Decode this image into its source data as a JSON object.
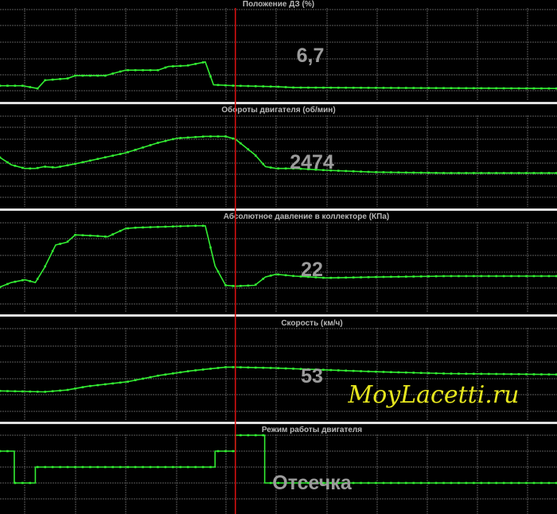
{
  "colors": {
    "background": "#000000",
    "line": "#33ee33",
    "cursor": "#dd1111",
    "grid": "#5a5a5a",
    "separator": "#e0e0e0",
    "value_text": "#9c9c9c",
    "watermark": "#e6e61e"
  },
  "watermark": "MoyLacetti.ru",
  "chart_data": [
    {
      "type": "line",
      "title": "Положение ДЗ  (%)",
      "current_value": "6,7",
      "x_unit": "sample",
      "cursor_sample": 31.3,
      "y_unit": "percent of plot height",
      "points": [
        [
          0,
          15
        ],
        [
          3,
          15
        ],
        [
          5,
          12
        ],
        [
          6,
          21
        ],
        [
          9,
          23
        ],
        [
          10,
          26
        ],
        [
          14,
          26
        ],
        [
          15.3,
          29
        ],
        [
          16.7,
          32
        ],
        [
          21,
          32
        ],
        [
          22.4,
          36
        ],
        [
          24.9,
          37
        ],
        [
          27.3,
          41
        ],
        [
          28.4,
          16
        ],
        [
          31.3,
          15
        ],
        [
          36.7,
          14
        ],
        [
          39.2,
          13
        ],
        [
          74,
          12
        ]
      ]
    },
    {
      "type": "line",
      "title": "Обороты двигателя  (об/мин)",
      "current_value": "2474",
      "x_unit": "sample",
      "cursor_sample": 31.3,
      "y_unit": "percent of plot height",
      "points": [
        [
          0,
          54
        ],
        [
          1.5,
          46
        ],
        [
          3.3,
          42
        ],
        [
          4.7,
          42
        ],
        [
          5.9,
          44
        ],
        [
          7.4,
          43
        ],
        [
          10,
          47
        ],
        [
          13.9,
          54
        ],
        [
          16.7,
          59
        ],
        [
          21,
          70
        ],
        [
          23.5,
          75
        ],
        [
          27.3,
          77
        ],
        [
          30,
          77
        ],
        [
          31.3,
          74
        ],
        [
          33.9,
          57
        ],
        [
          35.3,
          44
        ],
        [
          36.7,
          42
        ],
        [
          39.2,
          42
        ],
        [
          43.4,
          40
        ],
        [
          49.7,
          38
        ],
        [
          59.3,
          37
        ],
        [
          74,
          37
        ]
      ]
    },
    {
      "type": "line",
      "title": "Абсолютное давление в коллекторе  (КПа)",
      "current_value": "22",
      "x_unit": "sample",
      "cursor_sample": 31.3,
      "y_unit": "percent of plot height",
      "points": [
        [
          0,
          28
        ],
        [
          1.5,
          33
        ],
        [
          3.3,
          36
        ],
        [
          4.7,
          33
        ],
        [
          5.9,
          49
        ],
        [
          7.4,
          74
        ],
        [
          8.9,
          77
        ],
        [
          10,
          85
        ],
        [
          12.7,
          84
        ],
        [
          14.3,
          83
        ],
        [
          16.7,
          92
        ],
        [
          18.2,
          93
        ],
        [
          25.9,
          95
        ],
        [
          27.3,
          95
        ],
        [
          28.6,
          51
        ],
        [
          30,
          30
        ],
        [
          31.3,
          29
        ],
        [
          33.9,
          30
        ],
        [
          35.3,
          39
        ],
        [
          36.7,
          42
        ],
        [
          39.2,
          40
        ],
        [
          43.4,
          38
        ],
        [
          50,
          39
        ],
        [
          59.3,
          40
        ],
        [
          74,
          40
        ]
      ]
    },
    {
      "type": "line",
      "title": "Скорость  (км/ч)",
      "current_value": "53",
      "x_unit": "sample",
      "cursor_sample": 31.3,
      "y_unit": "percent of plot height",
      "points": [
        [
          0,
          31
        ],
        [
          5.9,
          30
        ],
        [
          8.9,
          32
        ],
        [
          11.6,
          36
        ],
        [
          16.9,
          41
        ],
        [
          21.2,
          48
        ],
        [
          25.4,
          53
        ],
        [
          30,
          57
        ],
        [
          31.3,
          57
        ],
        [
          36.7,
          56
        ],
        [
          43.4,
          54
        ],
        [
          50,
          52
        ],
        [
          59.3,
          50
        ],
        [
          74,
          49
        ]
      ]
    },
    {
      "type": "line",
      "title": "Режим работы двигателя",
      "current_value": "Отсечка",
      "x_unit": "sample",
      "cursor_sample": 31.3,
      "y_unit": "mode level",
      "step": true,
      "points": [
        [
          0,
          3
        ],
        [
          1.9,
          1
        ],
        [
          4.7,
          2
        ],
        [
          28.6,
          3
        ],
        [
          31.3,
          4
        ],
        [
          35.2,
          1
        ],
        [
          74,
          1
        ]
      ]
    }
  ]
}
